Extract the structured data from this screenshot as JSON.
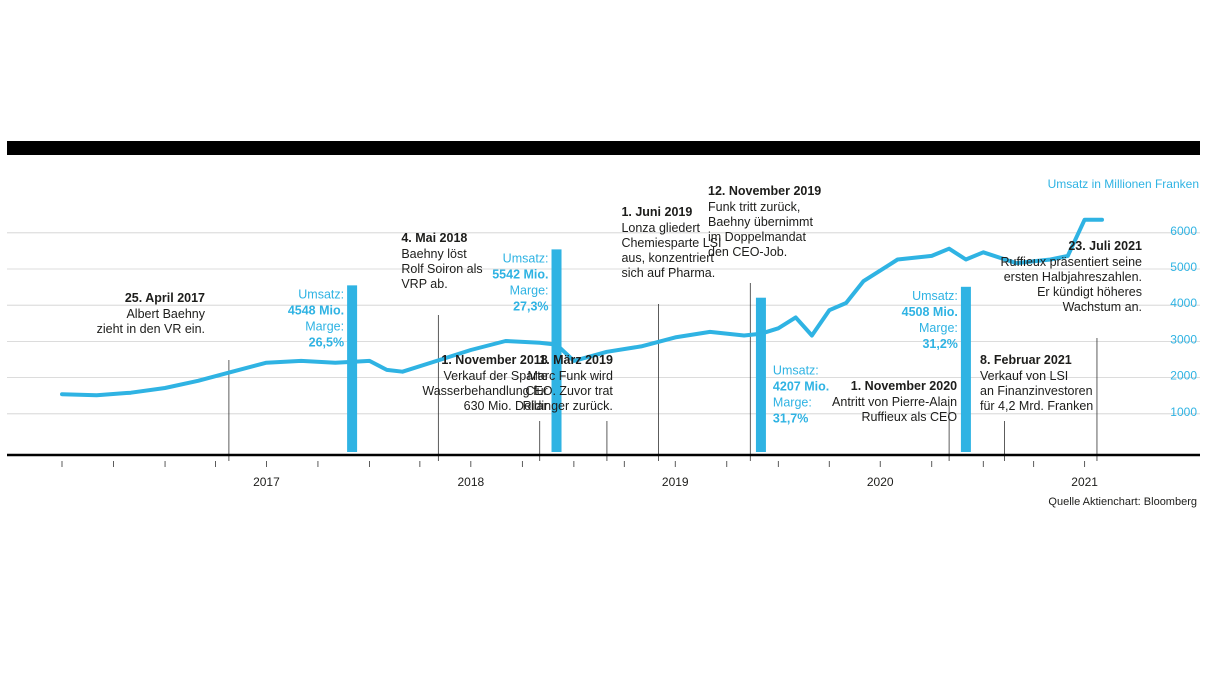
{
  "chart_data": {
    "type": "line",
    "unit_label": "Umsatz in Millionen Franken",
    "y_ticks": [
      "6000",
      "5000",
      "4000",
      "3000",
      "2000",
      "1000"
    ],
    "ylim": [
      0,
      6500
    ],
    "grid": true,
    "years": [
      "2017",
      "2018",
      "2019",
      "2020",
      "2021"
    ],
    "source": "Quelle Aktienchart: Bloomberg",
    "series": [
      {
        "x": [
          "2016-07",
          "2016-09",
          "2016-11",
          "2017-01",
          "2017-03",
          "2017-05",
          "2017-07",
          "2017-09",
          "2017-11",
          "2018-01",
          "2018-02",
          "2018-03",
          "2018-05",
          "2018-07",
          "2018-09",
          "2018-11",
          "2018-12",
          "2019-01",
          "2019-03",
          "2019-05",
          "2019-07",
          "2019-09",
          "2019-11",
          "2019-12",
          "2020-01",
          "2020-02",
          "2020-03",
          "2020-04",
          "2020-05",
          "2020-06",
          "2020-08",
          "2020-10",
          "2020-11",
          "2020-12",
          "2021-01",
          "2021-03",
          "2021-05",
          "2021-06",
          "2021-07",
          "2021-08"
        ],
        "values": [
          1680,
          1650,
          1720,
          1850,
          2050,
          2300,
          2550,
          2600,
          2550,
          2600,
          2350,
          2300,
          2600,
          2900,
          3150,
          3100,
          3050,
          2600,
          2850,
          3000,
          3250,
          3400,
          3300,
          3350,
          3500,
          3800,
          3300,
          4000,
          4200,
          4800,
          5400,
          5500,
          5700,
          5400,
          5600,
          5300,
          5400,
          5500,
          6500,
          6500
        ]
      }
    ],
    "revenue_bars": [
      {
        "date": "2017-12",
        "label": "Umsatz:",
        "value_text": "4548 Mio.",
        "margin_label": "Marge:",
        "margin_text": "26,5%",
        "value": 4548
      },
      {
        "date": "2018-12",
        "label": "Umsatz:",
        "value_text": "5542 Mio.",
        "margin_label": "Marge:",
        "margin_text": "27,3%",
        "value": 5542
      },
      {
        "date": "2019-12",
        "label": "Umsatz:",
        "value_text": "4207 Mio.",
        "margin_label": "Marge:",
        "margin_text": "31,7%",
        "value": 4207
      },
      {
        "date": "2020-12",
        "label": "Umsatz:",
        "value_text": "4508 Mio.",
        "margin_label": "Marge:",
        "margin_text": "31,2%",
        "value": 4508
      }
    ],
    "events": [
      {
        "date": "2017-04-25",
        "title": "25. April 2017",
        "lines": [
          "Albert Baehny",
          "zieht in den VR ein."
        ]
      },
      {
        "date": "2018-05-04",
        "title": "4. Mai 2018",
        "lines": [
          "Baehny löst",
          "Rolf Soiron als",
          "VRP ab."
        ]
      },
      {
        "date": "2018-11-01",
        "title": "1. November 2018",
        "lines": [
          "Verkauf der Sparte",
          "Wasserbehandlung für",
          "630 Mio. Dollar"
        ]
      },
      {
        "date": "2019-03-01",
        "title": "1. März 2019",
        "lines": [
          "Marc Funk wird",
          "CEO. Zuvor trat",
          "Ridinger zurück."
        ]
      },
      {
        "date": "2019-06-01",
        "title": "1. Juni 2019",
        "lines": [
          "Lonza gliedert",
          "Chemiesparte LSI",
          "aus, konzentriert",
          "sich auf Pharma."
        ]
      },
      {
        "date": "2019-11-12",
        "title": "12. November 2019",
        "lines": [
          "Funk tritt zurück,",
          "Baehny übernimmt",
          "im Doppelmandat",
          "den CEO-Job."
        ]
      },
      {
        "date": "2020-11-01",
        "title": "1. November 2020",
        "lines": [
          "Antritt von Pierre-Alain",
          "Ruffieux als CEO"
        ]
      },
      {
        "date": "2021-02-08",
        "title": "8. Februar 2021",
        "lines": [
          "Verkauf von LSI",
          "an Finanzinvestoren",
          "für 4,2 Mrd. Franken"
        ]
      },
      {
        "date": "2021-07-23",
        "title": "23. Juli 2021",
        "lines": [
          "Ruffieux präsentiert seine",
          "ersten Halbjahreszahlen.",
          "Er kündigt höheres",
          "Wachstum an."
        ]
      }
    ],
    "colors": {
      "line": "#2fb3e3",
      "bar": "#2fb3e3",
      "text": "#1d1d1b",
      "rule": "#000000",
      "grid": "#d0d0d0"
    }
  }
}
